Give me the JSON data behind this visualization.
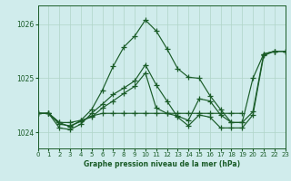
{
  "xlabel": "Graphe pression niveau de la mer (hPa)",
  "xlim": [
    0,
    23
  ],
  "ylim": [
    1023.7,
    1026.35
  ],
  "yticks": [
    1024,
    1025,
    1026
  ],
  "xticks": [
    0,
    1,
    2,
    3,
    4,
    5,
    6,
    7,
    8,
    9,
    10,
    11,
    12,
    13,
    14,
    15,
    16,
    17,
    18,
    19,
    20,
    21,
    22,
    23
  ],
  "bg_color": "#d0ecec",
  "grid_color": "#b0d4c8",
  "line_color": "#1a5c28",
  "lines": [
    {
      "x": [
        0,
        1,
        2,
        3,
        4,
        5,
        6,
        7,
        8,
        9,
        10,
        11,
        12,
        13,
        14,
        15,
        16,
        17,
        18,
        19,
        20,
        21,
        22,
        23
      ],
      "y": [
        1024.35,
        1024.35,
        1024.18,
        1024.1,
        1024.22,
        1024.42,
        1024.78,
        1025.22,
        1025.58,
        1025.78,
        1026.08,
        1025.88,
        1025.55,
        1025.18,
        1025.02,
        1025.0,
        1024.68,
        1024.42,
        1024.18,
        1024.18,
        1025.0,
        1025.45,
        1025.5,
        1025.5
      ]
    },
    {
      "x": [
        0,
        1,
        2,
        3,
        4,
        5,
        6,
        7,
        8,
        9,
        10,
        11,
        12,
        13,
        14,
        15,
        16,
        17,
        18,
        19,
        20,
        21,
        22,
        23
      ],
      "y": [
        1024.35,
        1024.35,
        1024.18,
        1024.18,
        1024.22,
        1024.28,
        1024.45,
        1024.58,
        1024.72,
        1024.85,
        1025.1,
        1024.45,
        1024.35,
        1024.3,
        1024.22,
        1024.62,
        1024.58,
        1024.32,
        1024.18,
        1024.18,
        1024.38,
        1025.45,
        1025.5,
        1025.5
      ]
    },
    {
      "x": [
        0,
        1,
        2,
        3,
        4,
        5,
        6,
        7,
        8,
        9,
        10,
        11,
        12,
        13,
        14,
        15,
        16,
        17,
        18,
        19
      ],
      "y": [
        1024.35,
        1024.35,
        1024.15,
        1024.12,
        1024.2,
        1024.3,
        1024.35,
        1024.35,
        1024.35,
        1024.35,
        1024.35,
        1024.35,
        1024.35,
        1024.35,
        1024.35,
        1024.35,
        1024.35,
        1024.35,
        1024.35,
        1024.35
      ]
    },
    {
      "x": [
        0,
        1,
        2,
        3,
        4,
        5,
        6,
        7,
        8,
        9,
        10,
        11,
        12,
        13,
        14,
        15,
        16,
        17,
        18,
        19,
        20,
        21,
        22,
        23
      ],
      "y": [
        1024.35,
        1024.35,
        1024.08,
        1024.05,
        1024.15,
        1024.35,
        1024.52,
        1024.7,
        1024.82,
        1024.95,
        1025.25,
        1024.88,
        1024.58,
        1024.28,
        1024.12,
        1024.32,
        1024.28,
        1024.08,
        1024.08,
        1024.08,
        1024.32,
        1025.42,
        1025.5,
        1025.5
      ]
    }
  ]
}
